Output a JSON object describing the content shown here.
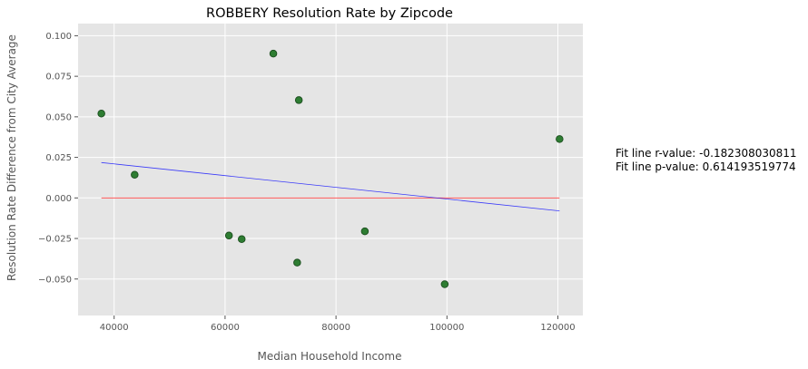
{
  "chart_data": {
    "type": "scatter",
    "title": "ROBBERY Resolution Rate by Zipcode",
    "xlabel": "Median Household Income",
    "ylabel": "Resolution Rate Difference from City Average",
    "xlim": [
      33500,
      124500
    ],
    "ylim": [
      -0.0725,
      0.1075
    ],
    "xticks": [
      40000,
      60000,
      80000,
      100000,
      120000
    ],
    "xtick_labels": [
      "40000",
      "60000",
      "80000",
      "100000",
      "120000"
    ],
    "yticks": [
      -0.05,
      -0.025,
      0.0,
      0.025,
      0.05,
      0.075,
      0.1
    ],
    "ytick_labels": [
      "−0.050",
      "−0.025",
      "0.000",
      "0.025",
      "0.050",
      "0.075",
      "0.100"
    ],
    "grid": true,
    "points": [
      {
        "x": 37700,
        "y": 0.052
      },
      {
        "x": 43700,
        "y": 0.0143
      },
      {
        "x": 60700,
        "y": -0.0232
      },
      {
        "x": 63000,
        "y": -0.0254
      },
      {
        "x": 68700,
        "y": 0.089
      },
      {
        "x": 73000,
        "y": -0.0399
      },
      {
        "x": 73300,
        "y": 0.0603
      },
      {
        "x": 85200,
        "y": -0.0206
      },
      {
        "x": 99600,
        "y": -0.0532
      },
      {
        "x": 120300,
        "y": 0.0363
      }
    ],
    "fit_line": {
      "color": "#0000ff",
      "x": [
        37700,
        120300
      ],
      "y": [
        0.0218,
        -0.008
      ]
    },
    "zero_line": {
      "color": "#ff0000",
      "x": [
        37700,
        120300
      ],
      "y": [
        0.0,
        0.0
      ]
    },
    "colors": {
      "background": "#e5e5e5",
      "grid": "#ffffff",
      "point_fill": "#2e7d32",
      "point_edge": "#1b4d1e"
    },
    "annotations": [
      "Fit line r-value: -0.182308030811",
      "Fit line p-value: 0.614193519774"
    ]
  }
}
